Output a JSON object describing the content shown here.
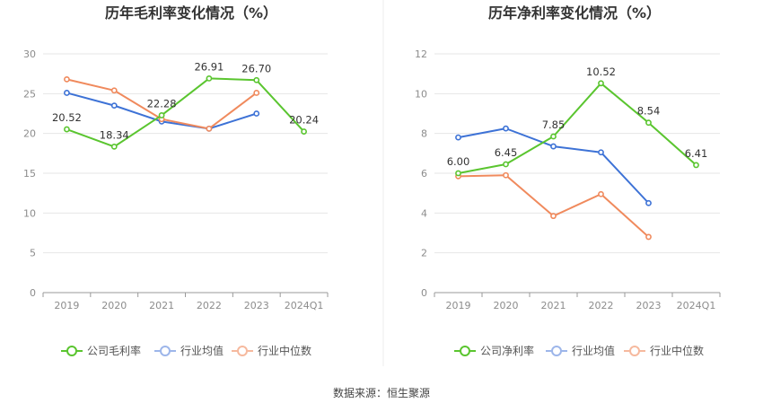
{
  "chart_data": [
    {
      "type": "line",
      "title": "历年毛利率变化情况（%）",
      "categories": [
        "2019",
        "2020",
        "2021",
        "2022",
        "2023",
        "2024Q1"
      ],
      "ylim": [
        0,
        30
      ],
      "yticks": [
        "0",
        "5",
        "10",
        "15",
        "20",
        "25",
        "30"
      ],
      "grid": true,
      "legend_position": "bottom",
      "series": [
        {
          "name": "公司毛利率",
          "color": "#5ac52f",
          "values": [
            20.52,
            18.34,
            22.28,
            26.91,
            26.7,
            20.24
          ],
          "labels": [
            "20.52",
            "18.34",
            "22.28",
            "26.91",
            "26.70",
            "20.24"
          ]
        },
        {
          "name": "行业均值",
          "color": "#3d72d6",
          "values": [
            25.1,
            23.5,
            21.5,
            20.6,
            22.5,
            null
          ]
        },
        {
          "name": "行业中位数",
          "color": "#f08a5d",
          "values": [
            26.8,
            25.4,
            21.8,
            20.6,
            25.1,
            null
          ]
        }
      ]
    },
    {
      "type": "line",
      "title": "历年净利率变化情况（%）",
      "categories": [
        "2019",
        "2020",
        "2021",
        "2022",
        "2023",
        "2024Q1"
      ],
      "ylim": [
        0,
        12
      ],
      "yticks": [
        "0",
        "2",
        "4",
        "6",
        "8",
        "10",
        "12"
      ],
      "grid": true,
      "legend_position": "bottom",
      "series": [
        {
          "name": "公司净利率",
          "color": "#5ac52f",
          "values": [
            6.0,
            6.45,
            7.85,
            10.52,
            8.54,
            6.41
          ],
          "labels": [
            "6.00",
            "6.45",
            "7.85",
            "10.52",
            "8.54",
            "6.41"
          ]
        },
        {
          "name": "行业均值",
          "color": "#3d72d6",
          "values": [
            7.8,
            8.25,
            7.35,
            7.05,
            4.5,
            null
          ]
        },
        {
          "name": "行业中位数",
          "color": "#f08a5d",
          "values": [
            5.85,
            5.9,
            3.85,
            4.95,
            2.8,
            null
          ]
        }
      ]
    }
  ],
  "footer": {
    "source": "数据来源：恒生聚源"
  }
}
